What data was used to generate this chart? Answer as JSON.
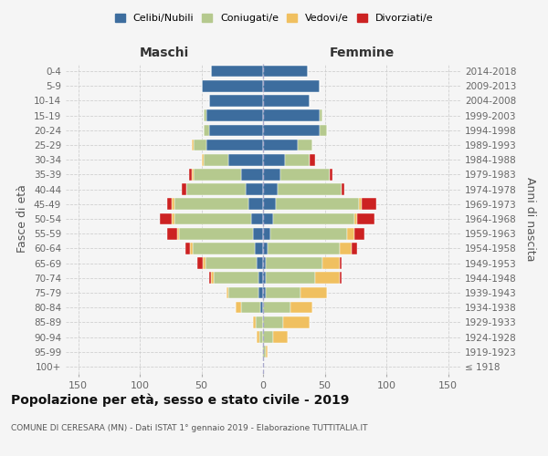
{
  "age_groups": [
    "100+",
    "95-99",
    "90-94",
    "85-89",
    "80-84",
    "75-79",
    "70-74",
    "65-69",
    "60-64",
    "55-59",
    "50-54",
    "45-49",
    "40-44",
    "35-39",
    "30-34",
    "25-29",
    "20-24",
    "15-19",
    "10-14",
    "5-9",
    "0-4"
  ],
  "birth_years": [
    "≤ 1918",
    "1919-1923",
    "1924-1928",
    "1929-1933",
    "1934-1938",
    "1939-1943",
    "1944-1948",
    "1949-1953",
    "1954-1958",
    "1959-1963",
    "1964-1968",
    "1969-1973",
    "1974-1978",
    "1979-1983",
    "1984-1988",
    "1989-1993",
    "1994-1998",
    "1999-2003",
    "2004-2008",
    "2009-2013",
    "2014-2018"
  ],
  "males": {
    "celibi": [
      0,
      0,
      0,
      0,
      2,
      4,
      4,
      5,
      7,
      8,
      10,
      12,
      14,
      18,
      28,
      46,
      44,
      46,
      44,
      50,
      42
    ],
    "coniugati": [
      0,
      1,
      3,
      6,
      16,
      24,
      36,
      42,
      50,
      60,
      62,
      60,
      48,
      38,
      20,
      10,
      4,
      2,
      0,
      0,
      0
    ],
    "vedovi": [
      0,
      0,
      2,
      2,
      4,
      2,
      2,
      2,
      2,
      2,
      2,
      2,
      0,
      2,
      2,
      2,
      0,
      0,
      0,
      0,
      0
    ],
    "divorziati": [
      0,
      0,
      0,
      0,
      0,
      0,
      2,
      4,
      4,
      8,
      10,
      4,
      4,
      2,
      0,
      0,
      0,
      0,
      0,
      0,
      0
    ]
  },
  "females": {
    "nubili": [
      0,
      0,
      0,
      0,
      0,
      2,
      2,
      2,
      4,
      6,
      8,
      10,
      12,
      14,
      18,
      28,
      46,
      46,
      38,
      46,
      36
    ],
    "coniugate": [
      0,
      2,
      8,
      16,
      22,
      28,
      40,
      46,
      58,
      62,
      66,
      68,
      52,
      40,
      20,
      12,
      6,
      2,
      0,
      0,
      0
    ],
    "vedove": [
      0,
      2,
      12,
      22,
      18,
      22,
      20,
      14,
      10,
      6,
      2,
      2,
      0,
      0,
      0,
      0,
      0,
      0,
      0,
      0,
      0
    ],
    "divorziate": [
      0,
      0,
      0,
      0,
      0,
      0,
      2,
      2,
      4,
      8,
      14,
      12,
      2,
      2,
      4,
      0,
      0,
      0,
      0,
      0,
      0
    ]
  },
  "colors": {
    "celibi": "#3d6d9e",
    "coniugati": "#b5c98e",
    "vedovi": "#f0c060",
    "divorziati": "#cc2222"
  },
  "title": "Popolazione per età, sesso e stato civile - 2019",
  "subtitle": "COMUNE DI CERESARA (MN) - Dati ISTAT 1° gennaio 2019 - Elaborazione TUTTITALIA.IT",
  "xlabel_left": "Maschi",
  "xlabel_right": "Femmine",
  "ylabel_left": "Fasce di età",
  "ylabel_right": "Anni di nascita",
  "xlim": 160,
  "bg_color": "#f5f5f5",
  "grid_color": "#cccccc",
  "legend_labels": [
    "Celibi/Nubili",
    "Coniugati/e",
    "Vedovi/e",
    "Divorziati/e"
  ]
}
